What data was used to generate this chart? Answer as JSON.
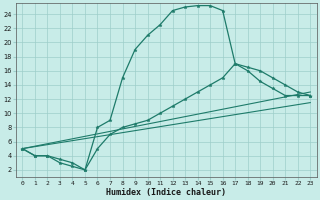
{
  "xlabel": "Humidex (Indice chaleur)",
  "bg_color": "#c8ece8",
  "grid_color": "#9ececa",
  "line_color": "#1e7b6a",
  "xlim": [
    -0.5,
    23.5
  ],
  "ylim": [
    1,
    25.5
  ],
  "xticks": [
    0,
    1,
    2,
    3,
    4,
    5,
    6,
    7,
    8,
    9,
    10,
    11,
    12,
    13,
    14,
    15,
    16,
    17,
    18,
    19,
    20,
    21,
    22,
    23
  ],
  "yticks": [
    2,
    4,
    6,
    8,
    10,
    12,
    14,
    16,
    18,
    20,
    22,
    24
  ],
  "main_x": [
    0,
    1,
    2,
    3,
    4,
    5,
    6,
    7,
    8,
    9,
    10,
    11,
    12,
    13,
    14,
    15,
    16,
    17,
    18,
    19,
    20,
    21,
    22,
    23
  ],
  "main_y": [
    5,
    4,
    4,
    3,
    2.5,
    2,
    8,
    9,
    15,
    19,
    21,
    22.5,
    24.5,
    25,
    25.2,
    25.2,
    24.5,
    17,
    16,
    14.5,
    13.5,
    12.5,
    12.5,
    12.5
  ],
  "line2_x": [
    0,
    1,
    2,
    3,
    4,
    5,
    6,
    7,
    8,
    9,
    10,
    11,
    12,
    13,
    14,
    15,
    16,
    17,
    18,
    19,
    20,
    21,
    22,
    23
  ],
  "line2_y": [
    5,
    4,
    4,
    3.5,
    3,
    2,
    5,
    7,
    8,
    8.5,
    9,
    10,
    11,
    12,
    13,
    14,
    15,
    17,
    16.5,
    16,
    15,
    14,
    13,
    12.5
  ],
  "line3_x": [
    0,
    23
  ],
  "line3_y": [
    5,
    13
  ],
  "line4_x": [
    0,
    23
  ],
  "line4_y": [
    5,
    11.5
  ]
}
